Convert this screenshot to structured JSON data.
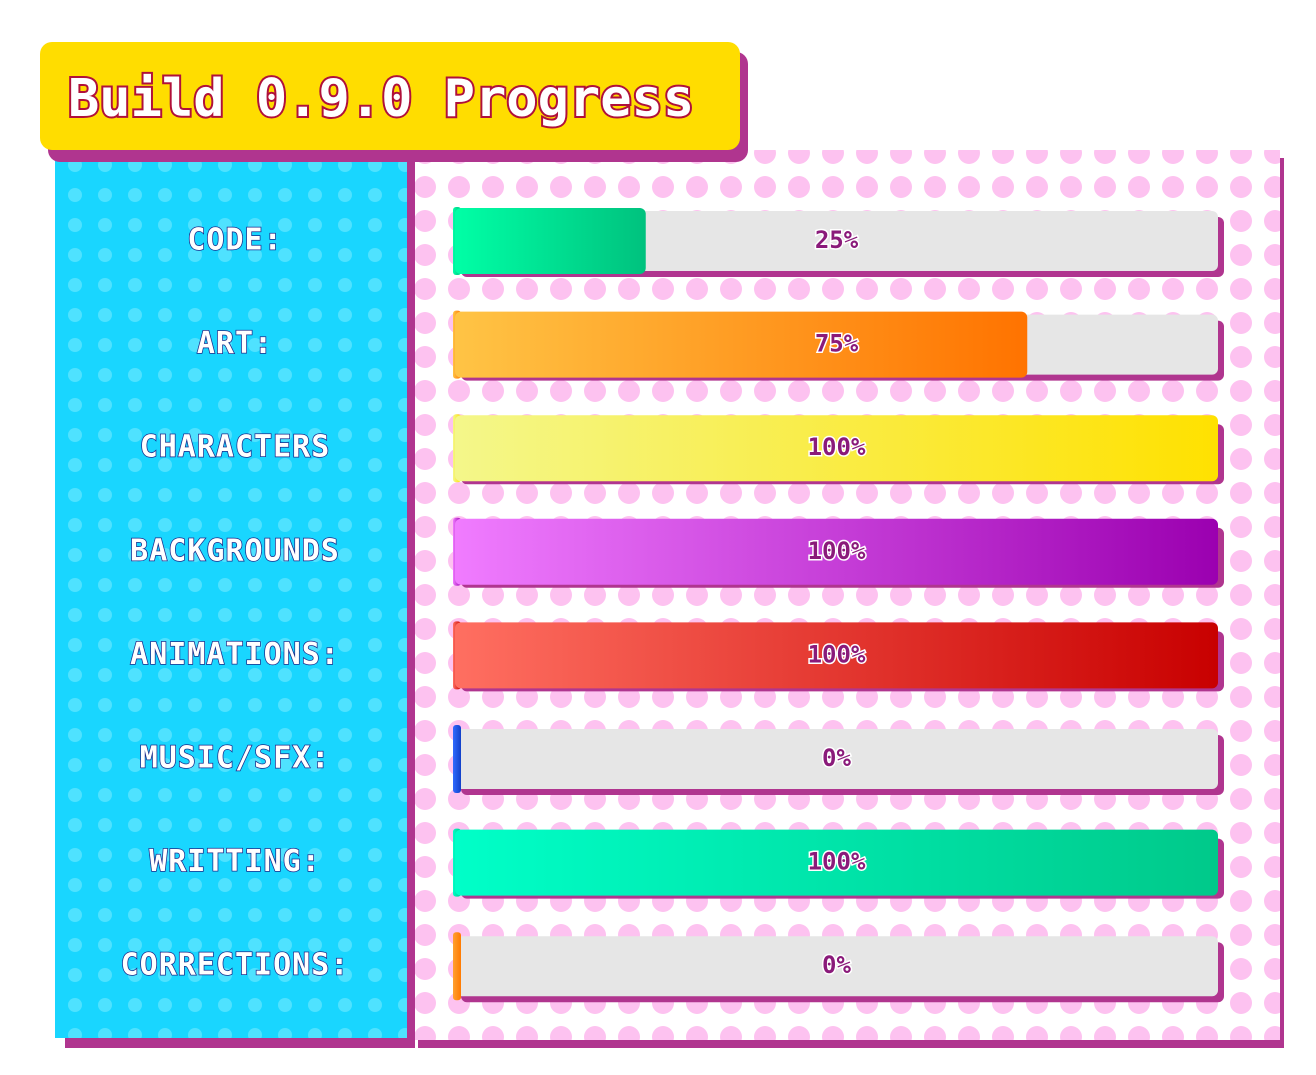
{
  "chart_data": {
    "type": "bar",
    "orientation": "horizontal",
    "title": "Build 0.9.0 Progress",
    "categories": [
      "CODE:",
      "ART:",
      "CHARACTERS",
      "BACKGROUNDS",
      "ANIMATIONS:",
      "MUSIC/SFX:",
      "WRITTING:",
      "CORRECTIONS:"
    ],
    "values": [
      25,
      75,
      100,
      100,
      100,
      0,
      100,
      0
    ],
    "value_labels": [
      "25%",
      "75%",
      "100%",
      "100%",
      "100%",
      "0%",
      "100%",
      "0%"
    ],
    "colors": [
      [
        "#00ffa6",
        "#00c27e"
      ],
      [
        "#ffc445",
        "#ff7300"
      ],
      [
        "#f4f78a",
        "#ffe100"
      ],
      [
        "#f07cff",
        "#9b00b0"
      ],
      [
        "#ff6f61",
        "#c80000"
      ],
      [
        "#2f6bff",
        "#1240c8"
      ],
      [
        "#00ffc8",
        "#00c98a"
      ],
      [
        "#ffa030",
        "#ff7a00"
      ]
    ],
    "xlim": [
      0,
      100
    ]
  }
}
